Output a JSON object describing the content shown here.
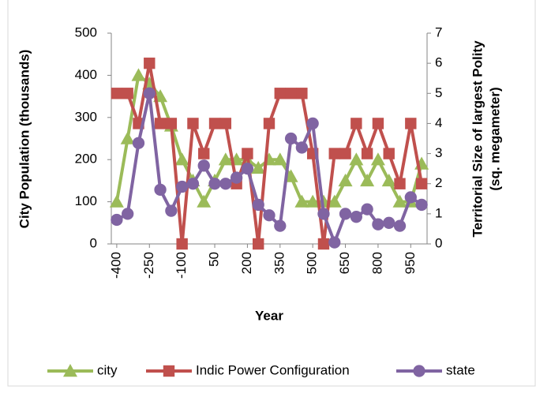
{
  "chart_data": {
    "type": "line",
    "y_label": "City Population (thousands)",
    "y2_label": [
      "Territorial Size of largest Polity",
      "(sq. megameter)"
    ],
    "x_label": "Year",
    "categories": [
      "-400",
      null,
      null,
      "-250",
      null,
      null,
      "-100",
      null,
      null,
      "50",
      null,
      null,
      "200",
      null,
      null,
      "350",
      null,
      null,
      "500",
      null,
      null,
      "650",
      null,
      null,
      "800",
      null,
      null,
      "950",
      null
    ],
    "series": [
      {
        "name": "city",
        "color": "#9bbb59",
        "marker": "triangle",
        "values": [
          100,
          250,
          400,
          380,
          350,
          280,
          200,
          150,
          100,
          150,
          200,
          200,
          200,
          180,
          200,
          200,
          160,
          100,
          100,
          100,
          100,
          150,
          200,
          150,
          200,
          150,
          100,
          100,
          190
        ]
      },
      {
        "name": "Indic Power Configuration",
        "color": "#c0504d",
        "marker": "square",
        "axis": "y2",
        "values": [
          5,
          5,
          4,
          6,
          4,
          4,
          0,
          4,
          3,
          4,
          4,
          2,
          3,
          0,
          4,
          5,
          5,
          5,
          3,
          0,
          3,
          3,
          4,
          3,
          4,
          3,
          2,
          4,
          2
        ]
      },
      {
        "name": "state",
        "color": "#8064a2",
        "marker": "circle",
        "axis": "y2",
        "values": [
          0.8,
          1.0,
          3.35,
          5.0,
          1.8,
          1.1,
          1.9,
          2.0,
          2.6,
          2.0,
          2.0,
          2.2,
          2.5,
          1.3,
          0.95,
          0.6,
          3.5,
          3.2,
          4.0,
          1.0,
          0.05,
          1.0,
          0.9,
          1.15,
          0.65,
          0.7,
          0.6,
          1.55,
          1.3
        ]
      }
    ],
    "ylim": [
      0,
      500
    ],
    "yticks": [
      0,
      100,
      200,
      300,
      400,
      500
    ],
    "y2lim": [
      0,
      7
    ],
    "y2ticks": [
      0,
      1,
      2,
      3,
      4,
      5,
      6,
      7
    ],
    "legend": "bottom"
  }
}
